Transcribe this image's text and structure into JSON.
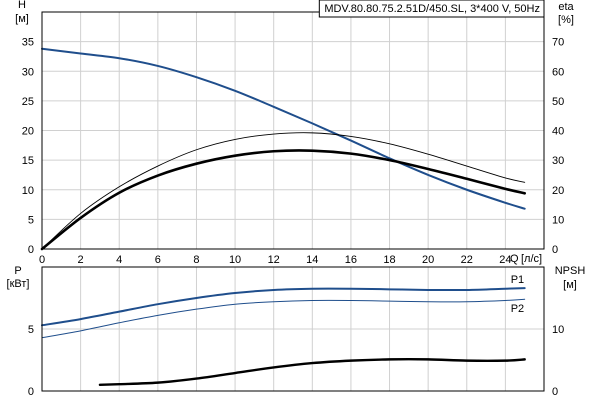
{
  "chart_data": [
    {
      "type": "line",
      "title": "MDV.80.80.75.2.51D/450.SL, 3*400 V, 50Hz",
      "xlabel": "Q [л/с]",
      "xlabel_q": "Q",
      "xlabel_unit": "[л/с]",
      "xlim": [
        0,
        26
      ],
      "x_ticks": [
        "0",
        "2",
        "4",
        "6",
        "8",
        "10",
        "12",
        "14",
        "16",
        "18",
        "20",
        "22",
        "24"
      ],
      "left_axis": {
        "label": "H",
        "unit": "[м]",
        "lim": [
          0,
          40
        ],
        "ticks": [
          "0",
          "5",
          "10",
          "15",
          "20",
          "25",
          "30",
          "35"
        ]
      },
      "right_axis": {
        "label": "eta",
        "unit": "[%]",
        "lim": [
          0,
          80
        ],
        "ticks": [
          "0",
          "10",
          "20",
          "30",
          "40",
          "50",
          "60",
          "70"
        ]
      },
      "grid": true,
      "series": [
        {
          "axis": "left",
          "color": "#1f4e8c",
          "width": 2,
          "points": [
            [
              0,
              33.8
            ],
            [
              2,
              33.0
            ],
            [
              4,
              32.2
            ],
            [
              6,
              30.9
            ],
            [
              8,
              29.0
            ],
            [
              10,
              26.7
            ],
            [
              12,
              24.0
            ],
            [
              14,
              21.2
            ],
            [
              16,
              18.3
            ],
            [
              18,
              15.3
            ],
            [
              20,
              12.5
            ],
            [
              22,
              10.0
            ],
            [
              24,
              7.8
            ],
            [
              25,
              6.8
            ]
          ]
        },
        {
          "axis": "right",
          "color": "#000000",
          "width": 2.6,
          "points": [
            [
              0,
              0
            ],
            [
              2,
              10.5
            ],
            [
              4,
              19.0
            ],
            [
              6,
              24.8
            ],
            [
              8,
              28.8
            ],
            [
              10,
              31.5
            ],
            [
              12,
              33.0
            ],
            [
              14,
              33.2
            ],
            [
              16,
              32.2
            ],
            [
              18,
              30.0
            ],
            [
              20,
              27.0
            ],
            [
              22,
              23.7
            ],
            [
              24,
              20.3
            ],
            [
              25,
              18.8
            ]
          ]
        },
        {
          "axis": "right",
          "color": "#000000",
          "width": 0.9,
          "points": [
            [
              0,
              0
            ],
            [
              2,
              12.0
            ],
            [
              4,
              21.0
            ],
            [
              6,
              28.0
            ],
            [
              8,
              33.5
            ],
            [
              10,
              37.0
            ],
            [
              12,
              38.8
            ],
            [
              14,
              39.2
            ],
            [
              16,
              38.0
            ],
            [
              18,
              35.5
            ],
            [
              20,
              32.0
            ],
            [
              22,
              28.0
            ],
            [
              24,
              24.0
            ],
            [
              25,
              22.5
            ]
          ]
        }
      ]
    },
    {
      "type": "line",
      "xlim": [
        0,
        26
      ],
      "left_axis": {
        "label": "P",
        "unit": "[кВт]",
        "lim": [
          0,
          10
        ],
        "ticks": [
          "0",
          "5"
        ]
      },
      "right_axis": {
        "label": "NPSH",
        "unit": "[м]",
        "lim": [
          0,
          20
        ],
        "ticks": [
          "0",
          "10"
        ]
      },
      "grid": true,
      "series": [
        {
          "name": "P1",
          "axis": "left",
          "color": "#1f4e8c",
          "width": 2,
          "points": [
            [
              0,
              5.3
            ],
            [
              2,
              5.8
            ],
            [
              4,
              6.4
            ],
            [
              6,
              7.0
            ],
            [
              8,
              7.5
            ],
            [
              10,
              7.9
            ],
            [
              12,
              8.15
            ],
            [
              14,
              8.25
            ],
            [
              16,
              8.25
            ],
            [
              18,
              8.2
            ],
            [
              20,
              8.15
            ],
            [
              22,
              8.15
            ],
            [
              24,
              8.25
            ],
            [
              25,
              8.3
            ]
          ]
        },
        {
          "name": "P2",
          "axis": "left",
          "color": "#1f4e8c",
          "width": 1,
          "points": [
            [
              0,
              4.3
            ],
            [
              2,
              4.85
            ],
            [
              4,
              5.5
            ],
            [
              6,
              6.1
            ],
            [
              8,
              6.6
            ],
            [
              10,
              7.0
            ],
            [
              12,
              7.2
            ],
            [
              14,
              7.3
            ],
            [
              16,
              7.3
            ],
            [
              18,
              7.25
            ],
            [
              20,
              7.2
            ],
            [
              22,
              7.2
            ],
            [
              24,
              7.3
            ],
            [
              25,
              7.4
            ]
          ]
        },
        {
          "name": "NPSH",
          "axis": "right",
          "color": "#000000",
          "width": 2.4,
          "points": [
            [
              3,
              1.0
            ],
            [
              4,
              1.1
            ],
            [
              6,
              1.35
            ],
            [
              8,
              2.0
            ],
            [
              10,
              2.9
            ],
            [
              12,
              3.8
            ],
            [
              14,
              4.5
            ],
            [
              16,
              4.9
            ],
            [
              18,
              5.1
            ],
            [
              20,
              5.1
            ],
            [
              22,
              4.9
            ],
            [
              24,
              4.9
            ],
            [
              25,
              5.1
            ]
          ]
        }
      ]
    }
  ]
}
